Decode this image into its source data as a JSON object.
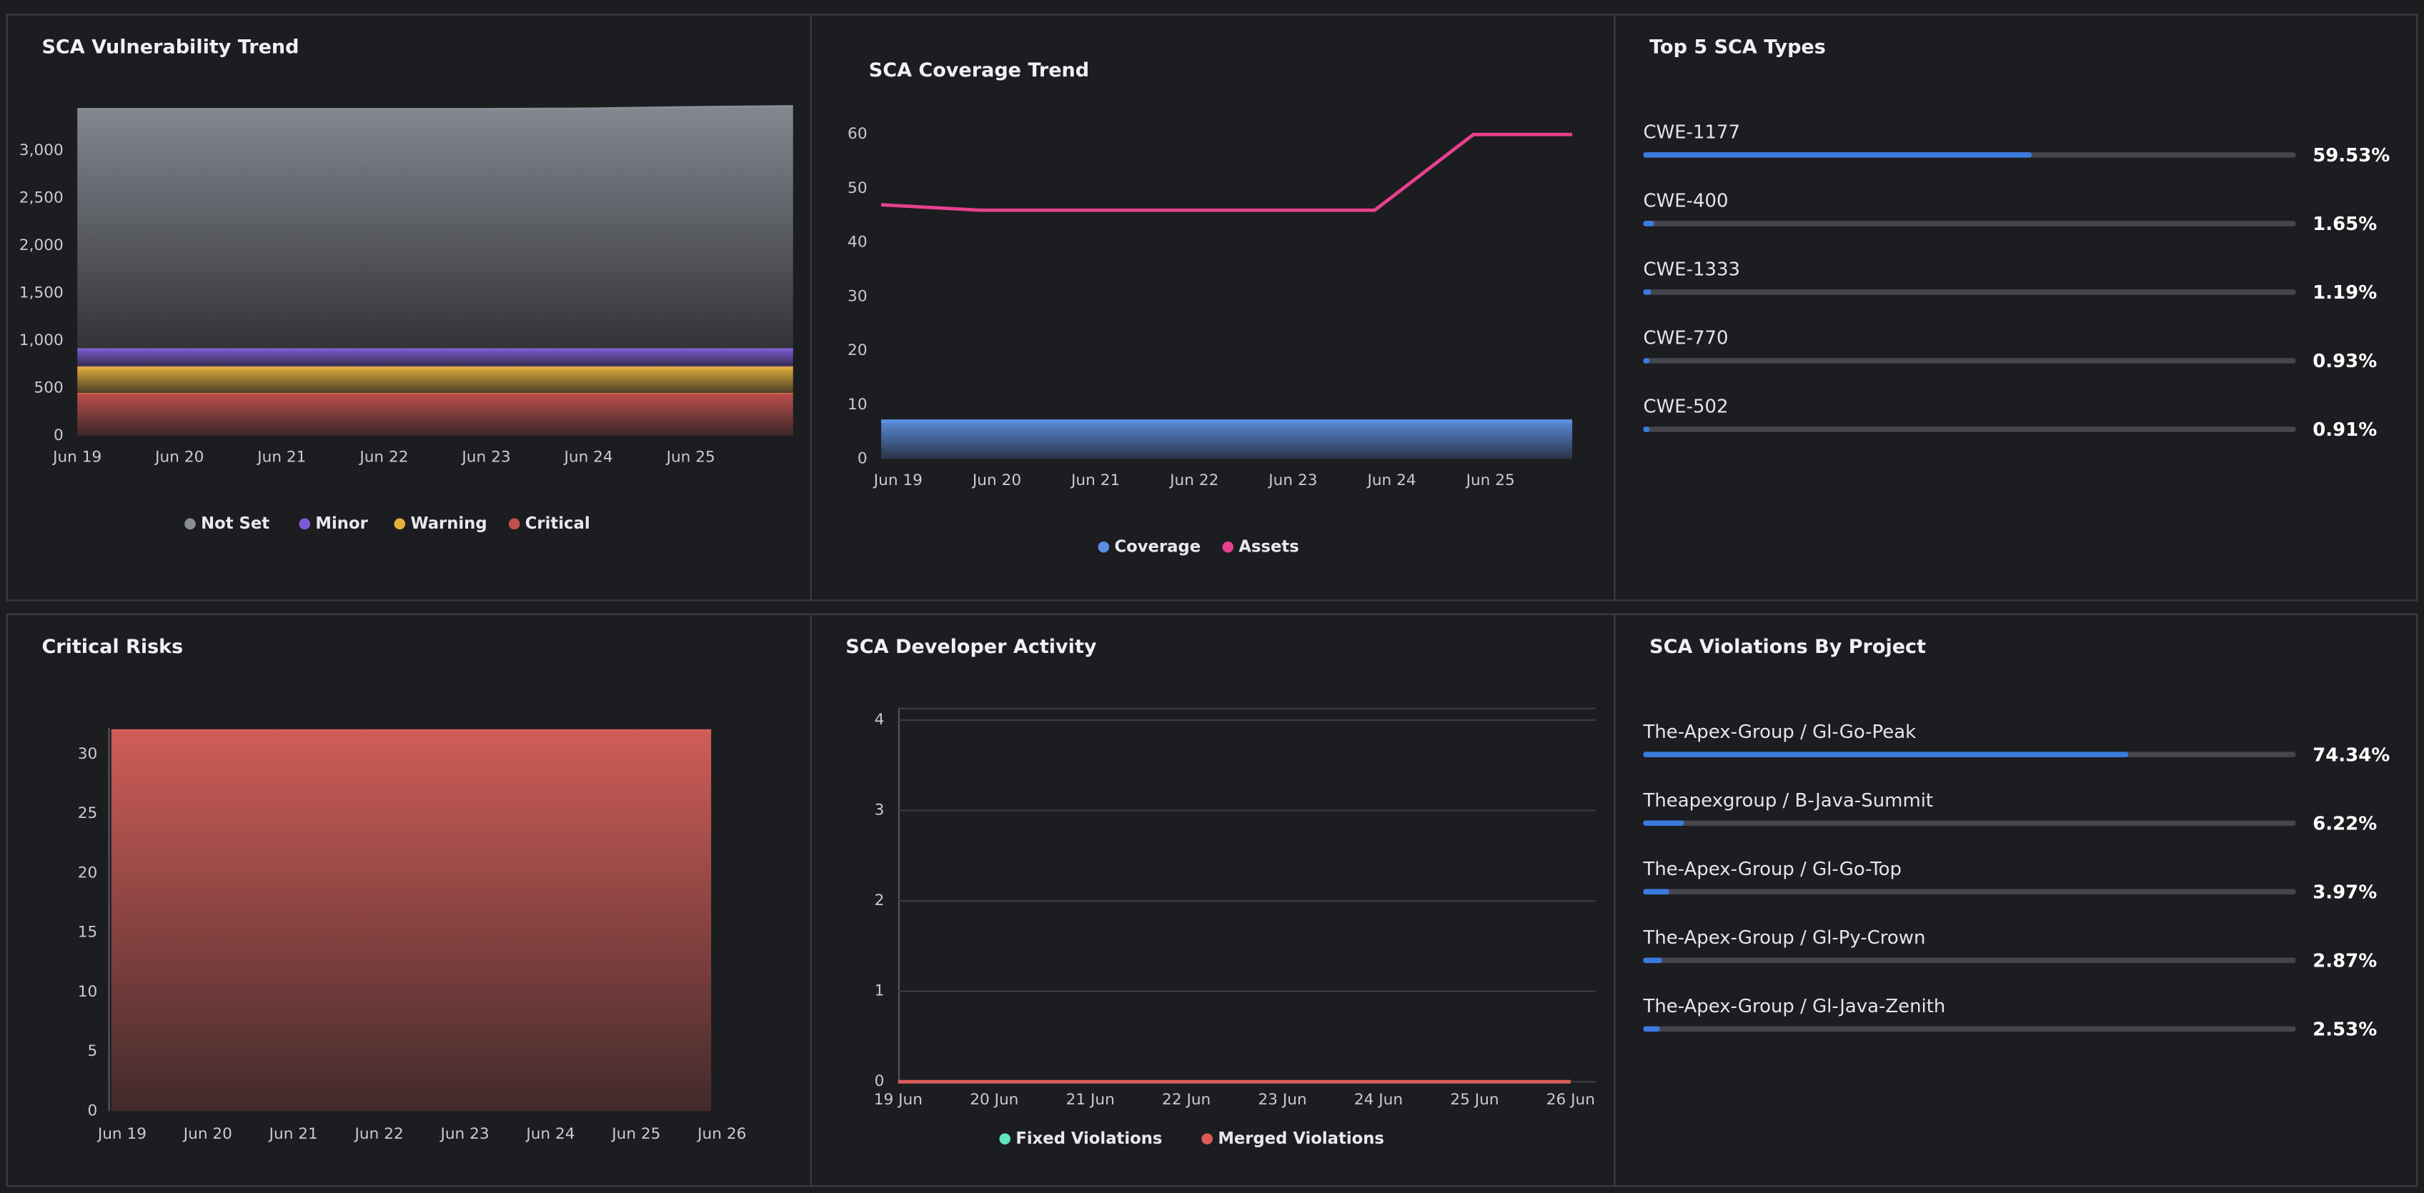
{
  "chart_data": [
    {
      "type": "area",
      "title": "SCA Vulnerability Trend",
      "stacked": true,
      "categories": [
        "Jun 19",
        "Jun 20",
        "Jun 21",
        "Jun 22",
        "Jun 23",
        "Jun 24",
        "Jun 25",
        null
      ],
      "series": [
        {
          "name": "Critical",
          "color": "#c0504d",
          "values": [
            440,
            440,
            440,
            440,
            440,
            440,
            440,
            440
          ]
        },
        {
          "name": "Warning",
          "color": "#e6b13a",
          "values": [
            280,
            280,
            280,
            280,
            280,
            280,
            280,
            280
          ]
        },
        {
          "name": "Minor",
          "color": "#7e5bd6",
          "values": [
            190,
            190,
            190,
            190,
            190,
            190,
            190,
            190
          ]
        },
        {
          "name": "Not Set",
          "color": "#8a8d96",
          "values": [
            2530,
            2530,
            2530,
            2530,
            2530,
            2535,
            2550,
            2560
          ]
        }
      ],
      "legend_order": [
        "Not Set",
        "Minor",
        "Warning",
        "Critical"
      ],
      "ylim": [
        0,
        3450
      ],
      "yticks": [
        0,
        500,
        {
          "value": 1000,
          "label": "1,000"
        },
        {
          "value": 1500,
          "label": "1,500"
        },
        {
          "value": 2000,
          "label": "2,000"
        },
        {
          "value": 2500,
          "label": "2,500"
        },
        {
          "value": 3000,
          "label": "3,000"
        }
      ]
    },
    {
      "type": "line",
      "title": "SCA Coverage Trend",
      "categories": [
        "Jun 19",
        "Jun 20",
        "Jun 21",
        "Jun 22",
        "Jun 23",
        "Jun 24",
        "Jun 25",
        null
      ],
      "series": [
        {
          "name": "Coverage",
          "color": "#5b8fe0",
          "fill": true,
          "values": [
            7,
            7,
            7,
            7,
            7,
            7,
            7,
            7
          ]
        },
        {
          "name": "Assets",
          "color": "#e8408f",
          "values": [
            47,
            46,
            46,
            46,
            46,
            46,
            60,
            60
          ]
        }
      ],
      "ylim": [
        0,
        62
      ],
      "yticks": [
        0,
        10,
        20,
        30,
        40,
        50,
        60
      ]
    },
    {
      "type": "bar",
      "title": "Top 5 SCA Types",
      "color": "#3b7be0",
      "categories": [
        "CWE-1177",
        "CWE-400",
        "CWE-1333",
        "CWE-770",
        "CWE-502"
      ],
      "values": [
        59.53,
        1.65,
        1.19,
        0.93,
        0.91
      ],
      "value_labels": [
        "59.53%",
        "1.65%",
        "1.19%",
        "0.93%",
        "0.91%"
      ],
      "xlim": [
        0,
        100
      ]
    },
    {
      "type": "area",
      "title": "Critical Risks",
      "categories": [
        "Jun 19",
        "Jun 20",
        "Jun 21",
        "Jun 22",
        "Jun 23",
        "Jun 24",
        "Jun 25",
        "Jun 26"
      ],
      "series": [
        {
          "name": null,
          "color": "#d9605a",
          "values": [
            32,
            32,
            32,
            32,
            32,
            32,
            32,
            32
          ]
        }
      ],
      "ylim": [
        0,
        33
      ],
      "yticks": [
        0,
        5,
        10,
        15,
        20,
        25,
        30
      ]
    },
    {
      "type": "line",
      "title": "SCA Developer Activity",
      "grid": true,
      "categories": [
        "19 Jun",
        "20 Jun",
        "21 Jun",
        "22 Jun",
        "23 Jun",
        "24 Jun",
        "25 Jun",
        "26 Jun"
      ],
      "series": [
        {
          "name": "Fixed Violations",
          "color": "#5ee6c0",
          "values": [
            0,
            0,
            0,
            0,
            0,
            0,
            0,
            0
          ]
        },
        {
          "name": "Merged Violations",
          "color": "#e05a5a",
          "values": [
            0,
            0,
            0,
            0,
            0,
            0,
            0,
            0
          ]
        }
      ],
      "ylim": [
        0,
        4
      ],
      "yticks": [
        0,
        1,
        2,
        3,
        4
      ]
    },
    {
      "type": "bar",
      "title": "SCA Violations By Project",
      "color": "#3b7be0",
      "categories": [
        "The-Apex-Group / Gl-Go-Peak",
        "Theapexgroup / B-Java-Summit",
        "The-Apex-Group / Gl-Go-Top",
        "The-Apex-Group / Gl-Py-Crown",
        "The-Apex-Group / Gl-Java-Zenith"
      ],
      "values": [
        74.34,
        6.22,
        3.97,
        2.87,
        2.53
      ],
      "value_labels": [
        "74.34%",
        "6.22%",
        "3.97%",
        "2.87%",
        "2.53%"
      ],
      "xlim": [
        0,
        100
      ]
    }
  ]
}
